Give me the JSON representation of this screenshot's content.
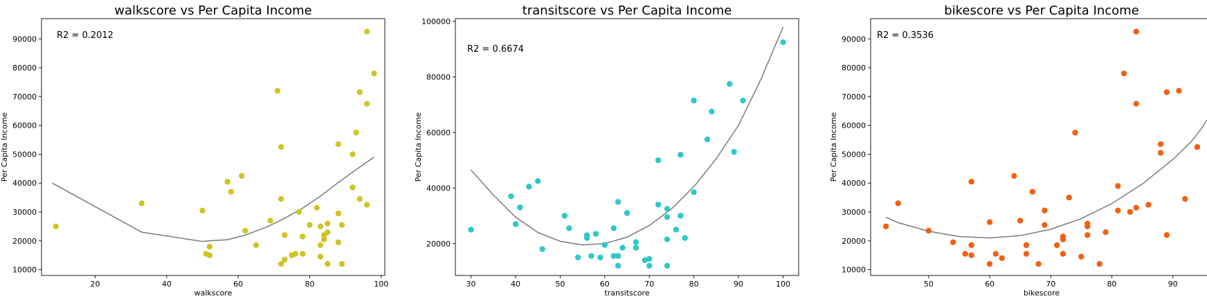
{
  "chart_data": [
    {
      "type": "scatter",
      "title": "walkscore vs Per Capita Income",
      "xlabel": "walkscore",
      "ylabel": "Per Capita Income",
      "annotation": "R2 = 0.2012",
      "xlim": [
        5,
        101
      ],
      "ylim": [
        8000,
        97000
      ],
      "xticks": [
        20,
        40,
        60,
        80,
        100
      ],
      "yticks": [
        10000,
        20000,
        30000,
        40000,
        50000,
        60000,
        70000,
        80000,
        90000
      ],
      "point_color": "#cfc423",
      "line_color": "#7a7a7a",
      "points": [
        [
          9,
          25000
        ],
        [
          33,
          33000
        ],
        [
          50,
          30500
        ],
        [
          51,
          15500
        ],
        [
          52,
          18000
        ],
        [
          52,
          15000
        ],
        [
          57,
          40500
        ],
        [
          58,
          37000
        ],
        [
          61,
          42500
        ],
        [
          62,
          23500
        ],
        [
          65,
          18500
        ],
        [
          69,
          27000
        ],
        [
          71,
          72000
        ],
        [
          72,
          52500
        ],
        [
          72,
          34500
        ],
        [
          72,
          12000
        ],
        [
          73,
          22000
        ],
        [
          73,
          13500
        ],
        [
          75,
          15000
        ],
        [
          76,
          15500
        ],
        [
          77,
          30000
        ],
        [
          78,
          21500
        ],
        [
          78,
          15500
        ],
        [
          80,
          25500
        ],
        [
          82,
          31500
        ],
        [
          83,
          25000
        ],
        [
          83,
          18500
        ],
        [
          83,
          14500
        ],
        [
          84,
          20500
        ],
        [
          84,
          22000
        ],
        [
          85,
          26000
        ],
        [
          85,
          23000
        ],
        [
          85,
          12000
        ],
        [
          88,
          53500
        ],
        [
          88,
          29500
        ],
        [
          88,
          19500
        ],
        [
          89,
          25500
        ],
        [
          89,
          12000
        ],
        [
          92,
          38500
        ],
        [
          92,
          50000
        ],
        [
          93,
          57500
        ],
        [
          94,
          71500
        ],
        [
          94,
          34500
        ],
        [
          96,
          92500
        ],
        [
          96,
          67500
        ],
        [
          96,
          32500
        ],
        [
          98,
          78000
        ]
      ],
      "fit_line": [
        [
          8,
          40000
        ],
        [
          33,
          23000
        ],
        [
          50,
          19800
        ],
        [
          52,
          20000
        ],
        [
          57,
          20400
        ],
        [
          62,
          22000
        ],
        [
          68,
          24800
        ],
        [
          73,
          27800
        ],
        [
          78,
          31300
        ],
        [
          83,
          35500
        ],
        [
          88,
          40200
        ],
        [
          93,
          44700
        ],
        [
          98,
          49000
        ]
      ]
    },
    {
      "type": "scatter",
      "title": "transitscore vs Per Capita Income",
      "xlabel": "transitscore",
      "ylabel": "Per Capita Income",
      "annotation": "R2 = 0.6674",
      "xlim": [
        26.5,
        103.5
      ],
      "ylim": [
        8500,
        101000
      ],
      "xticks": [
        30,
        40,
        50,
        60,
        70,
        80,
        90,
        100
      ],
      "yticks": [
        20000,
        40000,
        60000,
        80000,
        100000
      ],
      "point_color": "#2ec8c8",
      "line_color": "#7a7a7a",
      "points": [
        [
          30,
          25000
        ],
        [
          39,
          37000
        ],
        [
          40,
          27000
        ],
        [
          41,
          33000
        ],
        [
          43,
          40500
        ],
        [
          45,
          42500
        ],
        [
          46,
          18000
        ],
        [
          51,
          30000
        ],
        [
          52,
          25500
        ],
        [
          54,
          15000
        ],
        [
          56,
          23000
        ],
        [
          56,
          22000
        ],
        [
          57,
          15500
        ],
        [
          58,
          23500
        ],
        [
          59,
          15000
        ],
        [
          60,
          19500
        ],
        [
          62,
          25500
        ],
        [
          62,
          15500
        ],
        [
          63,
          15500
        ],
        [
          63,
          35000
        ],
        [
          63,
          12000
        ],
        [
          64,
          18500
        ],
        [
          65,
          31000
        ],
        [
          67,
          18500
        ],
        [
          67,
          20500
        ],
        [
          69,
          14000
        ],
        [
          70,
          14500
        ],
        [
          70,
          12000
        ],
        [
          72,
          34000
        ],
        [
          72,
          50000
        ],
        [
          74,
          32500
        ],
        [
          74,
          29500
        ],
        [
          74,
          21500
        ],
        [
          74,
          12000
        ],
        [
          76,
          25000
        ],
        [
          77,
          52000
        ],
        [
          77,
          30000
        ],
        [
          78,
          22000
        ],
        [
          80,
          71500
        ],
        [
          80,
          38500
        ],
        [
          83,
          57500
        ],
        [
          84,
          67500
        ],
        [
          88,
          77500
        ],
        [
          89,
          53000
        ],
        [
          91,
          71500
        ],
        [
          100,
          92500
        ]
      ],
      "fit_line": [
        [
          30,
          46500
        ],
        [
          35,
          37500
        ],
        [
          40,
          29500
        ],
        [
          45,
          24000
        ],
        [
          50,
          20800
        ],
        [
          55,
          19500
        ],
        [
          60,
          20000
        ],
        [
          65,
          22300
        ],
        [
          70,
          26500
        ],
        [
          75,
          32500
        ],
        [
          80,
          40500
        ],
        [
          85,
          50500
        ],
        [
          90,
          62500
        ],
        [
          95,
          79000
        ],
        [
          100,
          98000
        ]
      ]
    },
    {
      "type": "scatter",
      "title": "bikescore vs Per Capita Income",
      "xlabel": "bikescore",
      "ylabel": "Per Capita Income",
      "annotation": "R2 = 0.3536",
      "xlim": [
        40.5,
        96.5
      ],
      "ylim": [
        8000,
        97000
      ],
      "xticks": [
        50,
        60,
        70,
        80,
        90
      ],
      "yticks": [
        10000,
        20000,
        30000,
        40000,
        50000,
        60000,
        70000,
        80000,
        90000
      ],
      "point_color": "#f26012",
      "line_color": "#7a7a7a",
      "points": [
        [
          43,
          25000
        ],
        [
          45,
          33000
        ],
        [
          50,
          23500
        ],
        [
          54,
          19500
        ],
        [
          56,
          15500
        ],
        [
          57,
          18500
        ],
        [
          57,
          15000
        ],
        [
          57,
          40500
        ],
        [
          60,
          26500
        ],
        [
          60,
          12000
        ],
        [
          61,
          15500
        ],
        [
          62,
          14000
        ],
        [
          64,
          42500
        ],
        [
          65,
          27000
        ],
        [
          66,
          18500
        ],
        [
          66,
          15500
        ],
        [
          67,
          37000
        ],
        [
          68,
          12000
        ],
        [
          69,
          30500
        ],
        [
          69,
          25500
        ],
        [
          71,
          18500
        ],
        [
          72,
          21500
        ],
        [
          72,
          20500
        ],
        [
          72,
          15500
        ],
        [
          73,
          35000
        ],
        [
          74,
          57500
        ],
        [
          75,
          14500
        ],
        [
          76,
          26000
        ],
        [
          76,
          25000
        ],
        [
          76,
          22000
        ],
        [
          78,
          12000
        ],
        [
          79,
          23000
        ],
        [
          81,
          39000
        ],
        [
          81,
          30500
        ],
        [
          82,
          78000
        ],
        [
          83,
          30000
        ],
        [
          84,
          92500
        ],
        [
          84,
          67500
        ],
        [
          84,
          31500
        ],
        [
          86,
          32500
        ],
        [
          88,
          53500
        ],
        [
          88,
          50500
        ],
        [
          89,
          71500
        ],
        [
          89,
          22000
        ],
        [
          91,
          72000
        ],
        [
          92,
          34500
        ],
        [
          94,
          52500
        ]
      ],
      "fit_line": [
        [
          43,
          28200
        ],
        [
          45,
          26300
        ],
        [
          50,
          23300
        ],
        [
          55,
          21500
        ],
        [
          60,
          21000
        ],
        [
          65,
          21800
        ],
        [
          70,
          24000
        ],
        [
          75,
          27700
        ],
        [
          80,
          32900
        ],
        [
          85,
          39700
        ],
        [
          90,
          48200
        ],
        [
          93,
          54400
        ],
        [
          94,
          57000
        ],
        [
          95,
          59800
        ],
        [
          95.5,
          61800
        ]
      ]
    }
  ]
}
